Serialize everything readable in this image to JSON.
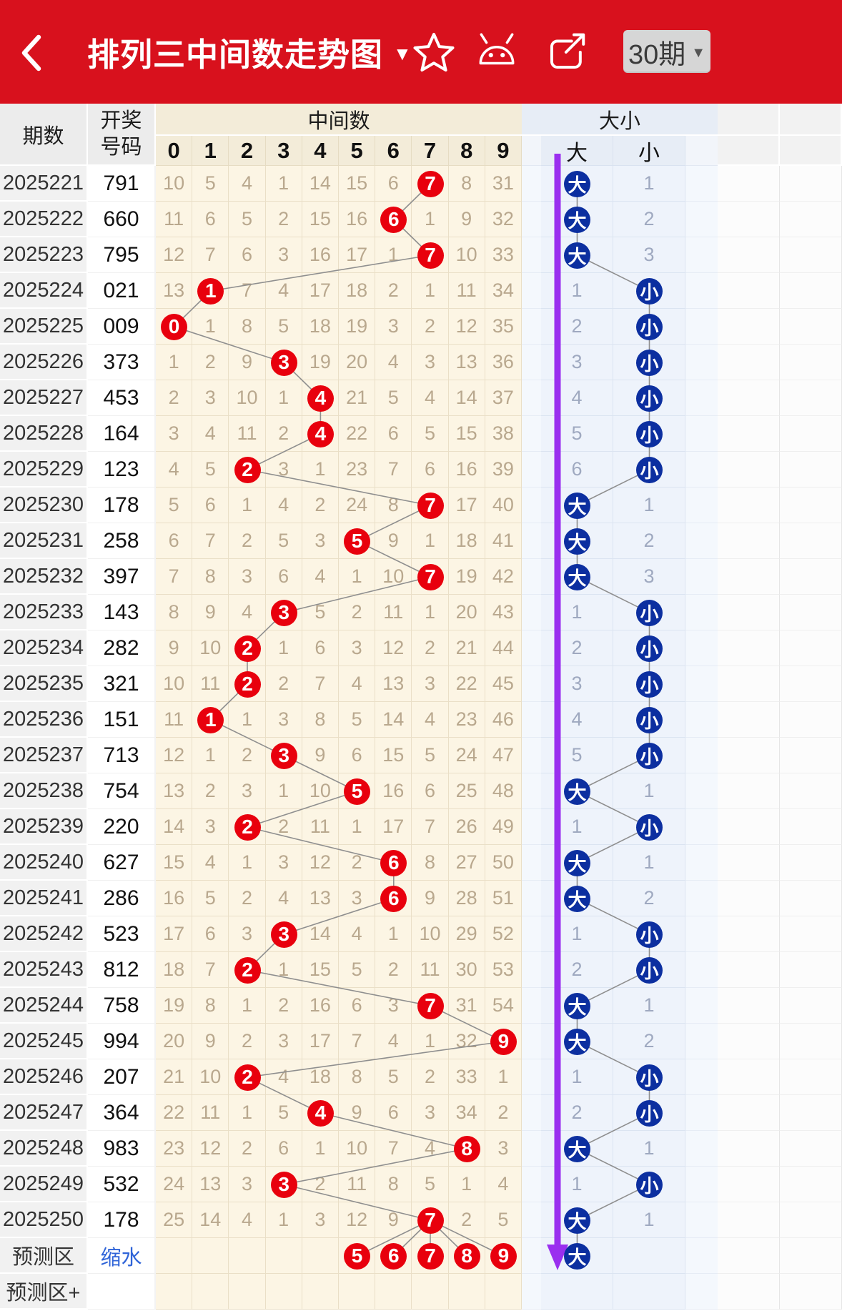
{
  "header": {
    "title": "排列三中间数走势图",
    "title_caret": "▼",
    "period_selector": "30期",
    "period_caret": "▼"
  },
  "table_head": {
    "issue": "期数",
    "draw_line1": "开奖",
    "draw_line2": "号码",
    "middle_group": "中间数",
    "bigsmall_group": "大小",
    "digits": [
      "0",
      "1",
      "2",
      "3",
      "4",
      "5",
      "6",
      "7",
      "8",
      "9"
    ],
    "big": "大",
    "small": "小"
  },
  "rows": [
    {
      "issue": "2025221",
      "draw": "791",
      "hit": 7,
      "miss": [
        10,
        5,
        4,
        1,
        14,
        15,
        6,
        7,
        8,
        31
      ],
      "bs": "big",
      "other_miss": 1
    },
    {
      "issue": "2025222",
      "draw": "660",
      "hit": 6,
      "miss": [
        11,
        6,
        5,
        2,
        15,
        16,
        6,
        1,
        9,
        32
      ],
      "bs": "big",
      "other_miss": 2
    },
    {
      "issue": "2025223",
      "draw": "795",
      "hit": 7,
      "miss": [
        12,
        7,
        6,
        3,
        16,
        17,
        1,
        7,
        10,
        33
      ],
      "bs": "big",
      "other_miss": 3
    },
    {
      "issue": "2025224",
      "draw": "021",
      "hit": 1,
      "miss": [
        13,
        1,
        7,
        4,
        17,
        18,
        2,
        1,
        11,
        34
      ],
      "bs": "small",
      "other_miss": 1
    },
    {
      "issue": "2025225",
      "draw": "009",
      "hit": 0,
      "miss": [
        0,
        1,
        8,
        5,
        18,
        19,
        3,
        2,
        12,
        35
      ],
      "bs": "small",
      "other_miss": 2
    },
    {
      "issue": "2025226",
      "draw": "373",
      "hit": 3,
      "miss": [
        1,
        2,
        9,
        3,
        19,
        20,
        4,
        3,
        13,
        36
      ],
      "bs": "small",
      "other_miss": 3
    },
    {
      "issue": "2025227",
      "draw": "453",
      "hit": 4,
      "miss": [
        2,
        3,
        10,
        1,
        4,
        21,
        5,
        4,
        14,
        37
      ],
      "bs": "small",
      "other_miss": 4
    },
    {
      "issue": "2025228",
      "draw": "164",
      "hit": 4,
      "miss": [
        3,
        4,
        11,
        2,
        4,
        22,
        6,
        5,
        15,
        38
      ],
      "bs": "small",
      "other_miss": 5
    },
    {
      "issue": "2025229",
      "draw": "123",
      "hit": 2,
      "miss": [
        4,
        5,
        2,
        3,
        1,
        23,
        7,
        6,
        16,
        39
      ],
      "bs": "small",
      "other_miss": 6
    },
    {
      "issue": "2025230",
      "draw": "178",
      "hit": 7,
      "miss": [
        5,
        6,
        1,
        4,
        2,
        24,
        8,
        7,
        17,
        40
      ],
      "bs": "big",
      "other_miss": 1
    },
    {
      "issue": "2025231",
      "draw": "258",
      "hit": 5,
      "miss": [
        6,
        7,
        2,
        5,
        3,
        5,
        9,
        1,
        18,
        41
      ],
      "bs": "big",
      "other_miss": 2
    },
    {
      "issue": "2025232",
      "draw": "397",
      "hit": 7,
      "miss": [
        7,
        8,
        3,
        6,
        4,
        1,
        10,
        7,
        19,
        42
      ],
      "bs": "big",
      "other_miss": 3
    },
    {
      "issue": "2025233",
      "draw": "143",
      "hit": 3,
      "miss": [
        8,
        9,
        4,
        3,
        5,
        2,
        11,
        1,
        20,
        43
      ],
      "bs": "small",
      "other_miss": 1
    },
    {
      "issue": "2025234",
      "draw": "282",
      "hit": 2,
      "miss": [
        9,
        10,
        2,
        1,
        6,
        3,
        12,
        2,
        21,
        44
      ],
      "bs": "small",
      "other_miss": 2
    },
    {
      "issue": "2025235",
      "draw": "321",
      "hit": 2,
      "miss": [
        10,
        11,
        2,
        2,
        7,
        4,
        13,
        3,
        22,
        45
      ],
      "bs": "small",
      "other_miss": 3
    },
    {
      "issue": "2025236",
      "draw": "151",
      "hit": 1,
      "miss": [
        11,
        1,
        1,
        3,
        8,
        5,
        14,
        4,
        23,
        46
      ],
      "bs": "small",
      "other_miss": 4
    },
    {
      "issue": "2025237",
      "draw": "713",
      "hit": 3,
      "miss": [
        12,
        1,
        2,
        3,
        9,
        6,
        15,
        5,
        24,
        47
      ],
      "bs": "small",
      "other_miss": 5
    },
    {
      "issue": "2025238",
      "draw": "754",
      "hit": 5,
      "miss": [
        13,
        2,
        3,
        1,
        10,
        5,
        16,
        6,
        25,
        48
      ],
      "bs": "big",
      "other_miss": 1
    },
    {
      "issue": "2025239",
      "draw": "220",
      "hit": 2,
      "miss": [
        14,
        3,
        2,
        2,
        11,
        1,
        17,
        7,
        26,
        49
      ],
      "bs": "small",
      "other_miss": 1
    },
    {
      "issue": "2025240",
      "draw": "627",
      "hit": 6,
      "miss": [
        15,
        4,
        1,
        3,
        12,
        2,
        6,
        8,
        27,
        50
      ],
      "bs": "big",
      "other_miss": 1
    },
    {
      "issue": "2025241",
      "draw": "286",
      "hit": 6,
      "miss": [
        16,
        5,
        2,
        4,
        13,
        3,
        6,
        9,
        28,
        51
      ],
      "bs": "big",
      "other_miss": 2
    },
    {
      "issue": "2025242",
      "draw": "523",
      "hit": 3,
      "miss": [
        17,
        6,
        3,
        3,
        14,
        4,
        1,
        10,
        29,
        52
      ],
      "bs": "small",
      "other_miss": 1
    },
    {
      "issue": "2025243",
      "draw": "812",
      "hit": 2,
      "miss": [
        18,
        7,
        2,
        1,
        15,
        5,
        2,
        11,
        30,
        53
      ],
      "bs": "small",
      "other_miss": 2
    },
    {
      "issue": "2025244",
      "draw": "758",
      "hit": 7,
      "miss": [
        19,
        8,
        1,
        2,
        16,
        6,
        3,
        7,
        31,
        54
      ],
      "bs": "big",
      "other_miss": 1
    },
    {
      "issue": "2025245",
      "draw": "994",
      "hit": 9,
      "miss": [
        20,
        9,
        2,
        3,
        17,
        7,
        4,
        1,
        32,
        9
      ],
      "bs": "big",
      "other_miss": 2
    },
    {
      "issue": "2025246",
      "draw": "207",
      "hit": 2,
      "miss": [
        21,
        10,
        2,
        4,
        18,
        8,
        5,
        2,
        33,
        1
      ],
      "bs": "small",
      "other_miss": 1
    },
    {
      "issue": "2025247",
      "draw": "364",
      "hit": 4,
      "miss": [
        22,
        11,
        1,
        5,
        4,
        9,
        6,
        3,
        34,
        2
      ],
      "bs": "small",
      "other_miss": 2
    },
    {
      "issue": "2025248",
      "draw": "983",
      "hit": 8,
      "miss": [
        23,
        12,
        2,
        6,
        1,
        10,
        7,
        4,
        8,
        3
      ],
      "bs": "big",
      "other_miss": 1
    },
    {
      "issue": "2025249",
      "draw": "532",
      "hit": 3,
      "miss": [
        24,
        13,
        3,
        3,
        2,
        11,
        8,
        5,
        1,
        4
      ],
      "bs": "small",
      "other_miss": 1
    },
    {
      "issue": "2025250",
      "draw": "178",
      "hit": 7,
      "miss": [
        25,
        14,
        4,
        1,
        3,
        12,
        9,
        7,
        2,
        5
      ],
      "bs": "big",
      "other_miss": 1
    }
  ],
  "prediction": {
    "issue": "预测区",
    "shrink_link": "缩水",
    "digits": [
      5,
      6,
      7,
      8,
      9
    ],
    "bs": "big"
  },
  "footer": {
    "issue": "预测区+"
  },
  "colors": {
    "header_bg": "#d8111d",
    "hit_ball": "#e8000d",
    "bs_ball": "#0c2fa0",
    "trend_line": "#8f8f8f",
    "arrow": "#9a2fef",
    "link": "#2f64d8"
  }
}
